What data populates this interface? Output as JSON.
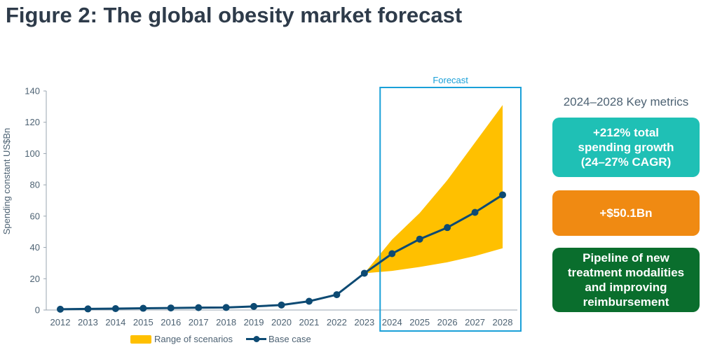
{
  "figure_title": "Figure 2: The global obesity market forecast",
  "forecast_label": "Forecast",
  "metrics": {
    "heading": "2024–2028 Key metrics",
    "items": [
      {
        "text": "+212% total\nspending growth\n(24–27% CAGR)",
        "color": "#1fc0b5"
      },
      {
        "text": "+$50.1Bn",
        "color": "#f08a12"
      },
      {
        "text": "Pipeline of new\ntreatment modalities\nand improving\nreimbursement",
        "color": "#0a6e2d"
      }
    ]
  },
  "colors": {
    "base_case": "#0d4a73",
    "range": "#ffc000",
    "forecast_box": "#1aa0d8",
    "axis": "#9aa6b0",
    "text": "#4d6273"
  },
  "chart_data": {
    "type": "line",
    "title": "",
    "xlabel": "",
    "ylabel": "Spending constant US$Bn",
    "x": [
      2012,
      2013,
      2014,
      2015,
      2016,
      2017,
      2018,
      2019,
      2020,
      2021,
      2022,
      2023,
      2024,
      2025,
      2026,
      2027,
      2028
    ],
    "yticks": [
      0,
      20,
      40,
      60,
      80,
      100,
      120,
      140
    ],
    "ylim": [
      0,
      140
    ],
    "grid": false,
    "legend_position": "bottom",
    "series": [
      {
        "name": "Base case",
        "values": [
          0.5,
          0.7,
          0.9,
          1.1,
          1.3,
          1.5,
          1.6,
          2.3,
          3.2,
          5.6,
          9.8,
          23.5,
          36.0,
          45.3,
          52.7,
          62.4,
          73.6
        ]
      }
    ],
    "range": {
      "name": "Range of scenarios",
      "x": [
        2023,
        2024,
        2025,
        2026,
        2027,
        2028
      ],
      "upper": [
        23.5,
        45.0,
        62.0,
        83.0,
        107.0,
        131.0
      ],
      "lower": [
        23.5,
        25.0,
        27.5,
        30.5,
        34.5,
        39.5
      ]
    },
    "forecast_range": [
      2024,
      2028
    ]
  }
}
